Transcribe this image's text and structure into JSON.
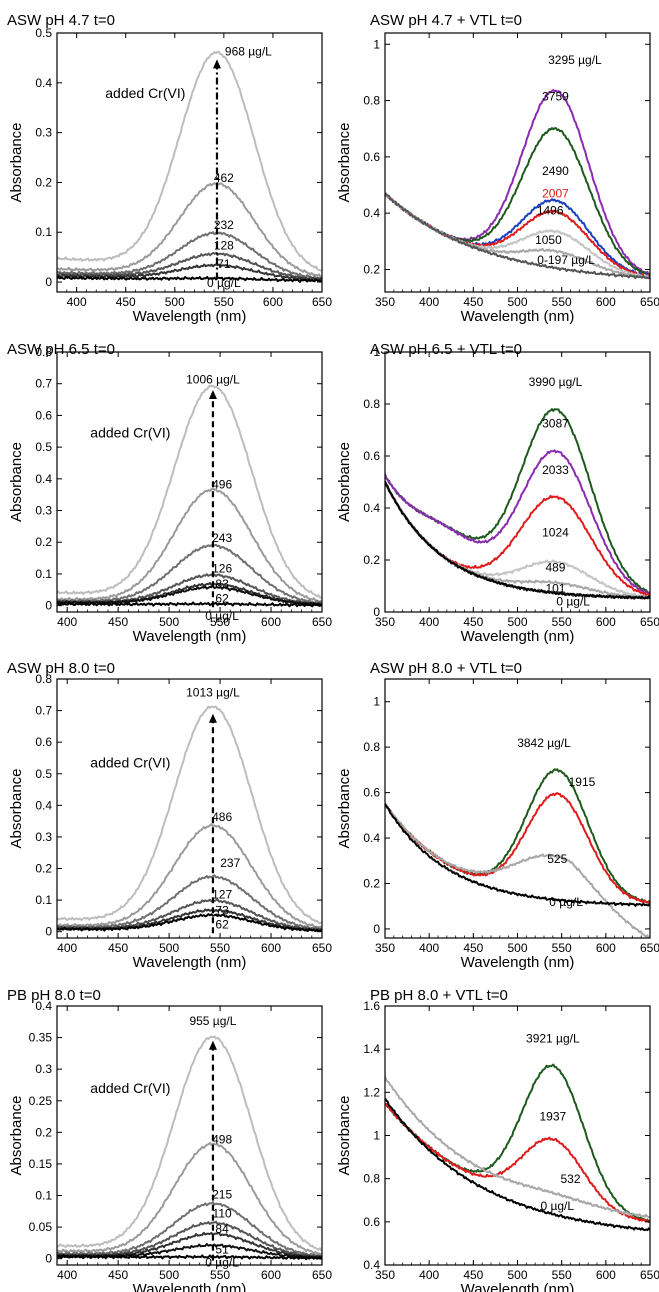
{
  "figure": {
    "panels": [
      {
        "id": "p1",
        "title": "ASW pH 4.7 t=0"
      },
      {
        "id": "p2",
        "title": "ASW pH 4.7 + VTL t=0"
      },
      {
        "id": "p3",
        "title": "ASW pH 6.5 t=0"
      },
      {
        "id": "p4",
        "title": "ASW pH 6.5 + VTL t=0"
      },
      {
        "id": "p5",
        "title": "ASW pH 8.0 t=0"
      },
      {
        "id": "p6",
        "title": "ASW pH 8.0 + VTL t=0"
      },
      {
        "id": "p7",
        "title": "PB pH 8.0 t=0"
      },
      {
        "id": "p8",
        "title": "PB pH 8.0 + VTL t=0"
      }
    ]
  },
  "chart_data": [
    {
      "type": "line",
      "title": "ASW pH 4.7 t=0",
      "xlabel": "Wavelength (nm)",
      "ylabel": "Absorbance",
      "xlim": [
        380,
        650
      ],
      "ylim": [
        -0.02,
        0.5
      ],
      "xticks": [
        400,
        450,
        500,
        550,
        600,
        650
      ],
      "yticks": [
        0,
        0.1,
        0.2,
        0.3,
        0.4,
        0.5
      ],
      "ytick_labels": [
        "0",
        "0.1",
        "0.2",
        "0.3",
        "0.4",
        "0.5"
      ],
      "annotations": [
        {
          "text": "added Cr(VI)",
          "x": 470,
          "y": 0.37
        }
      ],
      "arrow": {
        "x": 543,
        "y0": 0.005,
        "y1": 0.447,
        "style": "dash-dot"
      },
      "series": [
        {
          "label": "968 µg/L",
          "peak": 0.447,
          "base": 0.045,
          "color": "#bdbdbd",
          "label_x": 575,
          "label_y": 0.455
        },
        {
          "label": "462",
          "peak": 0.19,
          "base": 0.025,
          "color": "#9a9a9a",
          "label_x": 550,
          "label_y": 0.201
        },
        {
          "label": "232",
          "peak": 0.093,
          "base": 0.018,
          "color": "#707070",
          "label_x": 550,
          "label_y": 0.106
        },
        {
          "label": "128",
          "peak": 0.052,
          "base": 0.015,
          "color": "#555555",
          "label_x": 550,
          "label_y": 0.065
        },
        {
          "label": "71",
          "peak": 0.03,
          "base": 0.012,
          "color": "#333333",
          "label_x": 550,
          "label_y": 0.028
        },
        {
          "label": "0 µg/L",
          "peak": 0.005,
          "base": 0.008,
          "color": "#000000",
          "label_x": 550,
          "label_y": -0.01
        }
      ]
    },
    {
      "type": "line",
      "title": "ASW pH 4.7 + VTL t=0",
      "xlabel": "Wavelength (nm)",
      "ylabel": "Absorbance",
      "xlim": [
        350,
        650
      ],
      "ylim": [
        0.12,
        1.04
      ],
      "xticks": [
        350,
        400,
        450,
        500,
        550,
        600,
        650
      ],
      "yticks": [
        0.2,
        0.4,
        0.6,
        0.8,
        1
      ],
      "ytick_labels": [
        "0.2",
        "0.4",
        "0.6",
        "0.8",
        "1"
      ],
      "series": [
        {
          "label": "3295 µg/L",
          "peak": 0.9,
          "color": "#8a2bb0",
          "label_x": 565,
          "label_y": 0.93
        },
        {
          "label": "3759",
          "peak": 0.765,
          "color": "#1e5a1e",
          "label_x": 543,
          "label_y": 0.8
        },
        {
          "label": "2490",
          "peak": 0.51,
          "color": "#1a3fbf",
          "label_x": 543,
          "label_y": 0.535
        },
        {
          "label": "2007",
          "peak": 0.47,
          "color": "#e01b1b",
          "label_x": 543,
          "label_y": 0.455,
          "label_color": "#e01b1b"
        },
        {
          "label": "1496",
          "peak": 0.4,
          "color": "#c4c4c4",
          "label_x": 537,
          "label_y": 0.395
        },
        {
          "label": "1050",
          "peak": 0.33,
          "color": "#a8a8a8",
          "label_x": 535,
          "label_y": 0.29
        },
        {
          "label": "0-197 µg/L",
          "peak": 0.18,
          "color": "#555555",
          "label_x": 555,
          "label_y": 0.22
        }
      ]
    },
    {
      "type": "line",
      "title": "ASW pH 6.5 t=0",
      "xlabel": "Wavelength (nm)",
      "ylabel": "Absorbance",
      "xlim": [
        390,
        650
      ],
      "ylim": [
        -0.02,
        0.8
      ],
      "xticks": [
        400,
        450,
        500,
        550,
        600,
        650
      ],
      "yticks": [
        0,
        0.1,
        0.2,
        0.3,
        0.4,
        0.5,
        0.6,
        0.7,
        0.8
      ],
      "ytick_labels": [
        "0",
        "0.1",
        "0.2",
        "0.3",
        "0.4",
        "0.5",
        "0.6",
        "0.7",
        "0.8"
      ],
      "annotations": [
        {
          "text": "added Cr(VI)",
          "x": 462,
          "y": 0.53
        }
      ],
      "arrow": {
        "x": 543,
        "y0": -0.005,
        "y1": 0.68,
        "style": "dash"
      },
      "series": [
        {
          "label": "1006 µg/L",
          "peak": 0.68,
          "base": 0.04,
          "color": "#bdbdbd",
          "label_x": 543,
          "label_y": 0.7
        },
        {
          "label": "496",
          "peak": 0.36,
          "base": 0.02,
          "color": "#9a9a9a",
          "label_x": 552,
          "label_y": 0.37
        },
        {
          "label": "243",
          "peak": 0.185,
          "base": 0.015,
          "color": "#707070",
          "label_x": 552,
          "label_y": 0.2
        },
        {
          "label": "126",
          "peak": 0.093,
          "base": 0.012,
          "color": "#555555",
          "label_x": 552,
          "label_y": 0.105
        },
        {
          "label": "83",
          "peak": 0.065,
          "base": 0.01,
          "color": "#333333",
          "label_x": 552,
          "label_y": 0.055
        },
        {
          "label": "62",
          "peak": 0.055,
          "base": 0.01,
          "color": "#111111",
          "label_x": 552,
          "label_y": 0.01
        },
        {
          "label": "0 µg/L",
          "peak": 0.004,
          "base": 0.005,
          "color": "#000000",
          "label_x": 552,
          "label_y": -0.045
        }
      ]
    },
    {
      "type": "line",
      "title": "ASW pH 6.5 + VTL t=0",
      "xlabel": "Wavelength (nm)",
      "ylabel": "Absorbance",
      "xlim": [
        350,
        650
      ],
      "ylim": [
        0,
        1
      ],
      "xticks": [
        350,
        400,
        450,
        500,
        550,
        600,
        650
      ],
      "yticks": [
        0,
        0.2,
        0.4,
        0.6,
        0.8,
        1
      ],
      "ytick_labels": [
        "0",
        "0.2",
        "0.4",
        "0.6",
        "0.8",
        "1"
      ],
      "series": [
        {
          "label": "3990 µg/L",
          "peak": 0.825,
          "color": "#1e5a1e",
          "label_x": 543,
          "label_y": 0.87
        },
        {
          "label": "3087",
          "peak": 0.665,
          "color": "#8a2bb0",
          "label_x": 543,
          "label_y": 0.71
        },
        {
          "label": "2033",
          "peak": 0.49,
          "color": "#e01b1b",
          "label_x": 543,
          "label_y": 0.53
        },
        {
          "label": "1024",
          "peak": 0.24,
          "color": "#c4c4c4",
          "label_x": 543,
          "label_y": 0.29
        },
        {
          "label": "489",
          "peak": 0.16,
          "color": "#a8a8a8",
          "label_x": 543,
          "label_y": 0.155
        },
        {
          "label": "101",
          "peak": 0.09,
          "color": "#555555",
          "label_x": 543,
          "label_y": 0.075
        },
        {
          "label": "0 µg/L",
          "peak": 0.04,
          "color": "#000000",
          "label_x": 563,
          "label_y": 0.025
        }
      ]
    },
    {
      "type": "line",
      "title": "ASW pH 8.0 t=0",
      "xlabel": "Wavelength (nm)",
      "ylabel": "Absorbance",
      "xlim": [
        390,
        650
      ],
      "ylim": [
        -0.02,
        0.8
      ],
      "xticks": [
        400,
        450,
        500,
        550,
        600,
        650
      ],
      "yticks": [
        0,
        0.1,
        0.2,
        0.3,
        0.4,
        0.5,
        0.6,
        0.7,
        0.8
      ],
      "ytick_labels": [
        "0",
        "0.1",
        "0.2",
        "0.3",
        "0.4",
        "0.5",
        "0.6",
        "0.7",
        "0.8"
      ],
      "annotations": [
        {
          "text": "added Cr(VI)",
          "x": 462,
          "y": 0.52
        }
      ],
      "arrow": {
        "x": 543,
        "y0": -0.005,
        "y1": 0.69,
        "style": "dash"
      },
      "series": [
        {
          "label": "1013 µg/L",
          "peak": 0.7,
          "base": 0.04,
          "color": "#bdbdbd",
          "label_x": 543,
          "label_y": 0.745
        },
        {
          "label": "486",
          "peak": 0.33,
          "base": 0.02,
          "color": "#9a9a9a",
          "label_x": 552,
          "label_y": 0.35
        },
        {
          "label": "237",
          "peak": 0.17,
          "base": 0.015,
          "color": "#707070",
          "label_x": 560,
          "label_y": 0.205
        },
        {
          "label": "127",
          "peak": 0.095,
          "base": 0.012,
          "color": "#555555",
          "label_x": 552,
          "label_y": 0.105
        },
        {
          "label": "73",
          "peak": 0.065,
          "base": 0.01,
          "color": "#333333",
          "label_x": 552,
          "label_y": 0.055
        },
        {
          "label": "62",
          "peak": 0.05,
          "base": 0.008,
          "color": "#000000",
          "label_x": 552,
          "label_y": 0.01
        }
      ]
    },
    {
      "type": "line",
      "title": "ASW pH 8.0 + VTL t=0",
      "xlabel": "Wavelength (nm)",
      "ylabel": "Absorbance",
      "xlim": [
        350,
        650
      ],
      "ylim": [
        -0.04,
        1.1
      ],
      "xticks": [
        350,
        400,
        450,
        500,
        550,
        600,
        650
      ],
      "yticks": [
        0,
        0.2,
        0.4,
        0.6,
        0.8,
        1
      ],
      "ytick_labels": [
        "0",
        "0.2",
        "0.4",
        "0.6",
        "0.8",
        "1"
      ],
      "series": [
        {
          "label": "3842 µg/L",
          "peak": 0.76,
          "color": "#1e5a1e",
          "label_x": 530,
          "label_y": 0.8
        },
        {
          "label": "1915",
          "peak": 0.655,
          "color": "#e01b1b",
          "label_x": 573,
          "label_y": 0.63
        },
        {
          "label": "525",
          "peak": 0.29,
          "color": "#a8a8a8",
          "label_x": 545,
          "label_y": 0.29
        },
        {
          "label": "0 µg/L",
          "peak": 0.15,
          "color": "#000000",
          "label_x": 555,
          "label_y": 0.1
        }
      ]
    },
    {
      "type": "line",
      "title": "PB pH 8.0 t=0",
      "xlabel": "Wavelength (nm)",
      "ylabel": "Absorbance",
      "xlim": [
        390,
        650
      ],
      "ylim": [
        -0.01,
        0.4
      ],
      "xticks": [
        400,
        450,
        500,
        550,
        600,
        650
      ],
      "yticks": [
        0,
        0.05,
        0.1,
        0.15,
        0.2,
        0.25,
        0.3,
        0.35,
        0.4
      ],
      "ytick_labels": [
        "0",
        "0.05",
        "0.1",
        "0.15",
        "0.2",
        "0.25",
        "0.3",
        "0.35",
        "0.4"
      ],
      "annotations": [
        {
          "text": "added Cr(VI)",
          "x": 462,
          "y": 0.262
        }
      ],
      "arrow": {
        "x": 543,
        "y0": -0.003,
        "y1": 0.345,
        "style": "dash"
      },
      "series": [
        {
          "label": "955 µg/L",
          "peak": 0.345,
          "base": 0.02,
          "color": "#bdbdbd",
          "label_x": 543,
          "label_y": 0.37
        },
        {
          "label": "498",
          "peak": 0.178,
          "base": 0.012,
          "color": "#9a9a9a",
          "label_x": 552,
          "label_y": 0.182
        },
        {
          "label": "215",
          "peak": 0.085,
          "base": 0.008,
          "color": "#707070",
          "label_x": 552,
          "label_y": 0.095
        },
        {
          "label": "110",
          "peak": 0.055,
          "base": 0.006,
          "color": "#555555",
          "label_x": 552,
          "label_y": 0.065
        },
        {
          "label": "84",
          "peak": 0.038,
          "base": 0.005,
          "color": "#333333",
          "label_x": 552,
          "label_y": 0.041
        },
        {
          "label": "51",
          "peak": 0.02,
          "base": 0.004,
          "color": "#111111",
          "label_x": 552,
          "label_y": 0.008
        },
        {
          "label": "0 µg/L",
          "peak": 0.002,
          "base": 0.003,
          "color": "#000000",
          "label_x": 552,
          "label_y": -0.012
        }
      ]
    },
    {
      "type": "line",
      "title": "PB pH 8.0 + VTL t=0",
      "xlabel": "Wavelength (nm)",
      "ylabel": "Absorbance",
      "xlim": [
        350,
        650
      ],
      "ylim": [
        0.4,
        1.6
      ],
      "xticks": [
        350,
        400,
        450,
        500,
        550,
        600,
        650
      ],
      "yticks": [
        0.4,
        0.6,
        0.8,
        1,
        1.2,
        1.4,
        1.6
      ],
      "ytick_labels": [
        "0.4",
        "0.6",
        "0.8",
        "1",
        "1.2",
        "1.4",
        "1.6"
      ],
      "series": [
        {
          "label": "3921 µg/L",
          "peak": 1.35,
          "color": "#1e5a1e",
          "label_x": 540,
          "label_y": 1.43
        },
        {
          "label": "1937",
          "peak": 1.01,
          "color": "#e01b1b",
          "label_x": 540,
          "label_y": 1.07
        },
        {
          "label": "532",
          "peak": 0.78,
          "color": "#a8a8a8",
          "label_x": 560,
          "label_y": 0.78
        },
        {
          "label": "0 µg/L",
          "peak": 0.7,
          "color": "#000000",
          "label_x": 545,
          "label_y": 0.655
        }
      ]
    }
  ]
}
